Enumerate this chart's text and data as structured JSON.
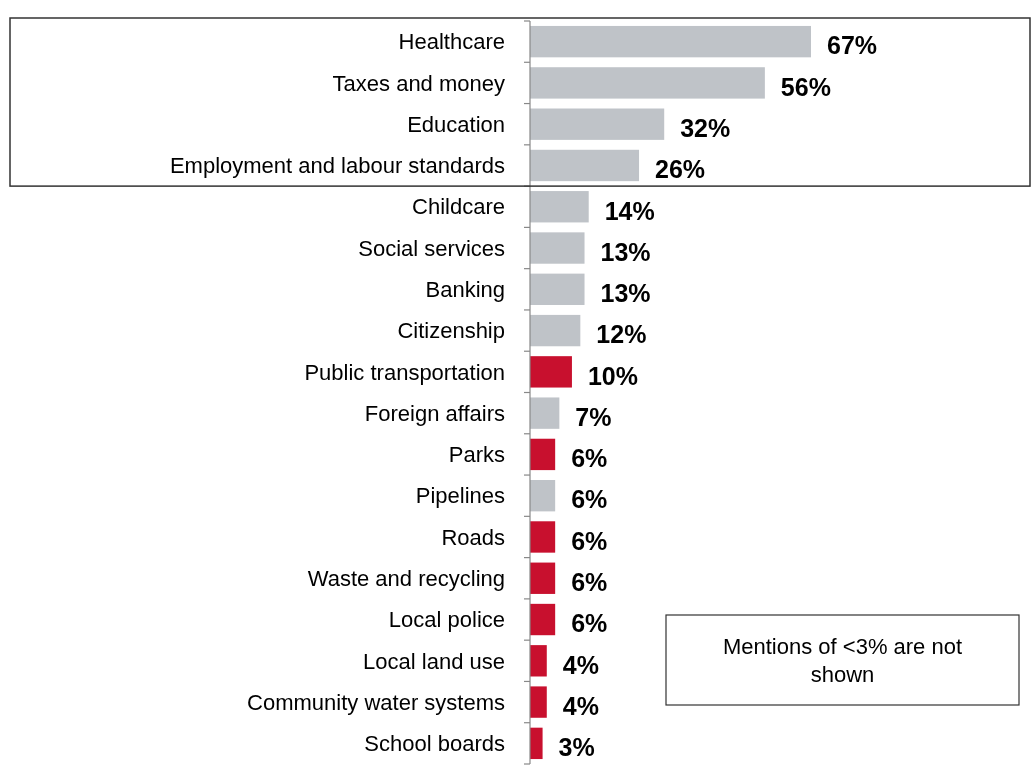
{
  "chart_data": {
    "type": "bar",
    "orientation": "horizontal",
    "categories": [
      "Healthcare",
      "Taxes and money",
      "Education",
      "Employment and labour standards",
      "Childcare",
      "Social services",
      "Banking",
      "Citizenship",
      "Public transportation",
      "Foreign affairs",
      "Parks",
      "Pipelines",
      "Roads",
      "Waste and recycling",
      "Local police",
      "Local land use",
      "Community water systems",
      "School boards"
    ],
    "values": [
      67,
      56,
      32,
      26,
      14,
      13,
      13,
      12,
      10,
      7,
      6,
      6,
      6,
      6,
      6,
      4,
      4,
      3
    ],
    "colors": [
      "#bfc3c8",
      "#bfc3c8",
      "#bfc3c8",
      "#bfc3c8",
      "#bfc3c8",
      "#bfc3c8",
      "#bfc3c8",
      "#bfc3c8",
      "#c8102e",
      "#bfc3c8",
      "#c8102e",
      "#bfc3c8",
      "#c8102e",
      "#c8102e",
      "#c8102e",
      "#c8102e",
      "#c8102e",
      "#c8102e"
    ],
    "value_labels": [
      "67%",
      "56%",
      "32%",
      "26%",
      "14%",
      "13%",
      "13%",
      "12%",
      "10%",
      "7%",
      "6%",
      "6%",
      "6%",
      "6%",
      "6%",
      "4%",
      "4%",
      "3%"
    ],
    "annotations": [
      "Mentions of <3% are not shown"
    ]
  }
}
